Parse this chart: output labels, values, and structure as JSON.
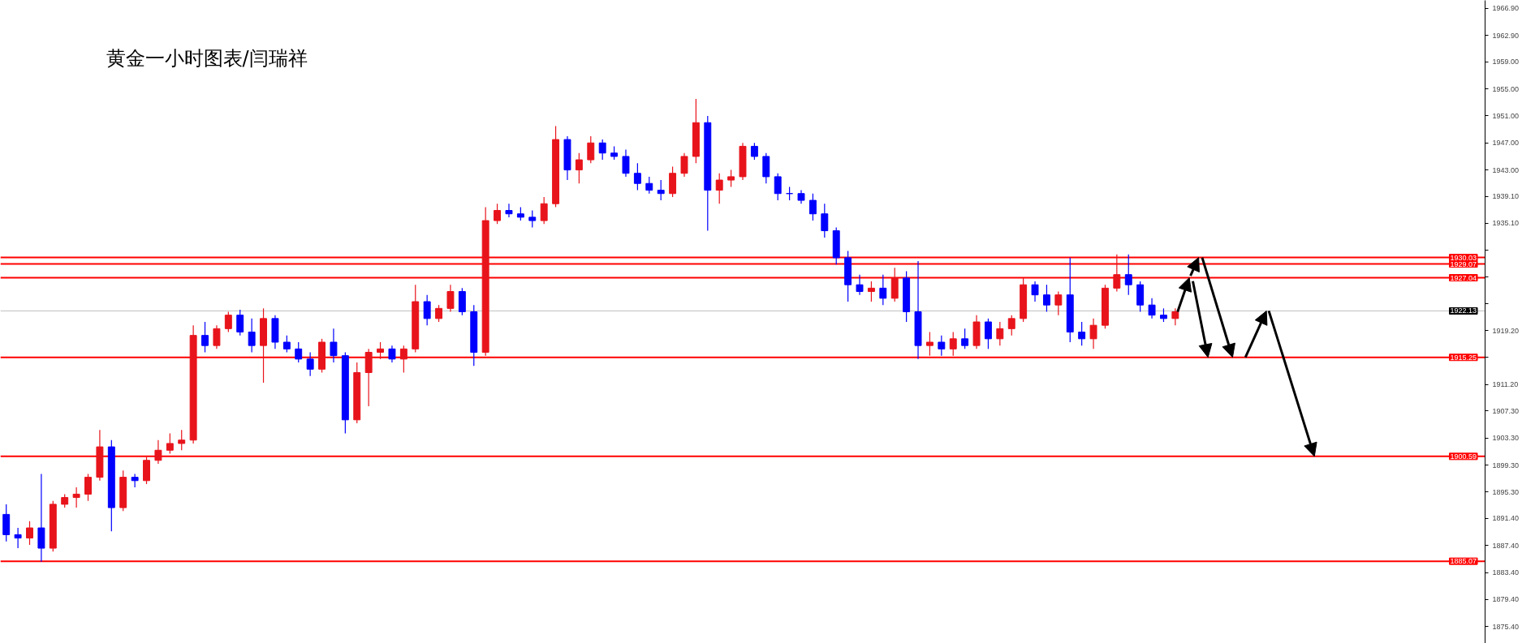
{
  "chart_data": {
    "type": "candlestick",
    "title": "黄金一小时图表/闫瑞祥",
    "categories": [
      null,
      null,
      null,
      null,
      null,
      null,
      null,
      null,
      null,
      null,
      null,
      null,
      null,
      null,
      null,
      null,
      null,
      null,
      null,
      null,
      null,
      null,
      null,
      null,
      null,
      null,
      null,
      null,
      null,
      null,
      null,
      null,
      null,
      null,
      null,
      null,
      null,
      null,
      null,
      null,
      null,
      null,
      null,
      null,
      null,
      null,
      null,
      null,
      null,
      null,
      null,
      null,
      null,
      null,
      null,
      null,
      null,
      null,
      null,
      null,
      null,
      null,
      null,
      null,
      null,
      null,
      null,
      null,
      null,
      null,
      null,
      null,
      null,
      null,
      null,
      null,
      null,
      null,
      null,
      null,
      null,
      null,
      null,
      null,
      null,
      null,
      null,
      null,
      null,
      null,
      null,
      null,
      null,
      null,
      null,
      null,
      null,
      null,
      null,
      null,
      null,
      null,
      null,
      null,
      null,
      null,
      null,
      null,
      null,
      null,
      null,
      null,
      null,
      null,
      null,
      null,
      null,
      null,
      null,
      null,
      null,
      null,
      null,
      null,
      null,
      null,
      null
    ],
    "ohlc": [
      [
        1892,
        1893.5,
        1888,
        1889
      ],
      [
        1889,
        1890,
        1887,
        1888.5
      ],
      [
        1888.5,
        1891,
        1887.5,
        1890
      ],
      [
        1890,
        1898,
        1885,
        1887
      ],
      [
        1887,
        1894,
        1886.5,
        1893.5
      ],
      [
        1893.5,
        1895,
        1893,
        1894.5
      ],
      [
        1894.5,
        1896,
        1893,
        1895
      ],
      [
        1895,
        1898,
        1894,
        1897.5
      ],
      [
        1897.5,
        1904.5,
        1897,
        1902
      ],
      [
        1902,
        1903,
        1889.5,
        1893
      ],
      [
        1893,
        1898.5,
        1892.5,
        1897.5
      ],
      [
        1897.5,
        1898,
        1896,
        1897
      ],
      [
        1897,
        1900.5,
        1896.5,
        1900
      ],
      [
        1900,
        1903,
        1899.5,
        1901.5
      ],
      [
        1901.5,
        1904,
        1901,
        1902.5
      ],
      [
        1902.5,
        1904.5,
        1901.5,
        1903
      ],
      [
        1903,
        1920,
        1902.5,
        1918.5
      ],
      [
        1918.5,
        1920.5,
        1916,
        1917
      ],
      [
        1917,
        1920,
        1916.5,
        1919.5
      ],
      [
        1919.5,
        1922,
        1919,
        1921.5
      ],
      [
        1921.5,
        1922.3,
        1918.5,
        1919
      ],
      [
        1919,
        1921,
        1916,
        1917
      ],
      [
        1917,
        1922.5,
        1911.5,
        1921
      ],
      [
        1921,
        1921.5,
        1916.5,
        1917.5
      ],
      [
        1917.5,
        1918.5,
        1916,
        1916.5
      ],
      [
        1916.5,
        1917.5,
        1914.5,
        1915
      ],
      [
        1915,
        1916,
        1912.5,
        1913.5
      ],
      [
        1913.5,
        1918,
        1913,
        1917.5
      ],
      [
        1917.5,
        1919.5,
        1914.5,
        1915.5
      ],
      [
        1915.5,
        1916,
        1904,
        1906
      ],
      [
        1906,
        1914.5,
        1905.5,
        1913
      ],
      [
        1913,
        1916.5,
        1908,
        1916
      ],
      [
        1916,
        1917.5,
        1915,
        1916.5
      ],
      [
        1916.5,
        1917,
        1914.5,
        1915
      ],
      [
        1915,
        1917,
        1913,
        1916.5
      ],
      [
        1916.5,
        1926,
        1916,
        1923.5
      ],
      [
        1923.5,
        1924.5,
        1920,
        1921
      ],
      [
        1921,
        1923,
        1920.5,
        1922.5
      ],
      [
        1922.5,
        1926,
        1922,
        1925
      ],
      [
        1925,
        1925.5,
        1921.5,
        1922
      ],
      [
        1922,
        1923,
        1914,
        1916
      ],
      [
        1916,
        1937.5,
        1915.5,
        1935.5
      ],
      [
        1935.5,
        1938,
        1935,
        1937
      ],
      [
        1937,
        1938,
        1936,
        1936.5
      ],
      [
        1936.5,
        1937.5,
        1935.5,
        1936
      ],
      [
        1936,
        1937,
        1934.5,
        1935.5
      ],
      [
        1935.5,
        1939,
        1935,
        1938
      ],
      [
        1938,
        1949.5,
        1937.5,
        1947.5
      ],
      [
        1947.5,
        1948,
        1941.5,
        1943
      ],
      [
        1943,
        1945.5,
        1941,
        1944.5
      ],
      [
        1944.5,
        1948,
        1944,
        1947
      ],
      [
        1947,
        1947.5,
        1944.5,
        1945.5
      ],
      [
        1945.5,
        1946.5,
        1944.5,
        1945
      ],
      [
        1945,
        1946,
        1942,
        1942.5
      ],
      [
        1942.5,
        1944,
        1940,
        1941
      ],
      [
        1941,
        1942,
        1939.5,
        1940
      ],
      [
        1940,
        1941.5,
        1938.5,
        1939.5
      ],
      [
        1939.5,
        1943.5,
        1939,
        1942.5
      ],
      [
        1942.5,
        1945.5,
        1942,
        1945
      ],
      [
        1945,
        1953.5,
        1944,
        1950
      ],
      [
        1950,
        1951,
        1934,
        1940
      ],
      [
        1940,
        1942.5,
        1938,
        1941.5
      ],
      [
        1941.5,
        1943,
        1940.5,
        1942
      ],
      [
        1942,
        1947,
        1941.5,
        1946.5
      ],
      [
        1946.5,
        1947,
        1944.5,
        1945
      ],
      [
        1945,
        1945.5,
        1941,
        1942
      ],
      [
        1942,
        1942.5,
        1938.5,
        1939.5
      ],
      [
        1939.5,
        1940.5,
        1938.5,
        1939.5
      ],
      [
        1939.5,
        1940,
        1938,
        1938.5
      ],
      [
        1938.5,
        1939.5,
        1935.5,
        1936.5
      ],
      [
        1936.5,
        1938,
        1933,
        1934
      ],
      [
        1934,
        1934.5,
        1929,
        1930
      ],
      [
        1930,
        1931,
        1923.5,
        1926
      ],
      [
        1926,
        1927.5,
        1924.5,
        1925
      ],
      [
        1925,
        1926.5,
        1923.5,
        1925.5
      ],
      [
        1925.5,
        1927.5,
        1923,
        1924
      ],
      [
        1924,
        1928.5,
        1923.5,
        1927
      ],
      [
        1927,
        1928,
        1920.5,
        1922
      ],
      [
        1922,
        1929.5,
        1915,
        1917
      ],
      [
        1917,
        1919,
        1915.5,
        1917.5
      ],
      [
        1917.5,
        1918.5,
        1915.5,
        1916.5
      ],
      [
        1916.5,
        1919,
        1915.5,
        1918
      ],
      [
        1918,
        1919.5,
        1916.5,
        1917
      ],
      [
        1917,
        1921.5,
        1916.5,
        1920.5
      ],
      [
        1920.5,
        1921,
        1916.5,
        1918
      ],
      [
        1918,
        1920.5,
        1917,
        1919.5
      ],
      [
        1919.5,
        1921.5,
        1918.5,
        1921
      ],
      [
        1921,
        1927,
        1920.5,
        1926
      ],
      [
        1926,
        1926.5,
        1923.5,
        1924.5
      ],
      [
        1924.5,
        1926,
        1922,
        1923
      ],
      [
        1923,
        1925,
        1921.5,
        1924.5
      ],
      [
        1924.5,
        1930,
        1917.5,
        1919
      ],
      [
        1919,
        1920.5,
        1917,
        1918
      ],
      [
        1918,
        1921,
        1916.5,
        1920
      ],
      [
        1920,
        1926,
        1919.5,
        1925.5
      ],
      [
        1925.5,
        1930.5,
        1925,
        1927.5
      ],
      [
        1927.5,
        1930.5,
        1924.5,
        1926
      ],
      [
        1926,
        1926.5,
        1922,
        1923
      ],
      [
        1923,
        1924,
        1921,
        1921.5
      ],
      [
        1921.5,
        1922.5,
        1920.5,
        1921
      ],
      [
        1921,
        1922.5,
        1920,
        1922
      ],
      null,
      null,
      null,
      null,
      null,
      null,
      null,
      null,
      null,
      null,
      null,
      null,
      null,
      null,
      null,
      null,
      null,
      null,
      null,
      null,
      null,
      null,
      null,
      null,
      null,
      null
    ],
    "colors": [
      "#0000ff",
      "#0000ff",
      "#e8141b",
      "#0000ff",
      "#e8141b",
      "#e8141b",
      "#e8141b",
      "#e8141b",
      "#e8141b",
      "#0000ff",
      "#e8141b",
      "#0000ff",
      "#e8141b",
      "#e8141b",
      "#e8141b",
      "#e8141b",
      "#e8141b",
      "#0000ff",
      "#e8141b",
      "#e8141b",
      "#0000ff",
      "#0000ff",
      "#e8141b",
      "#0000ff",
      "#0000ff",
      "#0000ff",
      "#0000ff",
      "#e8141b",
      "#0000ff",
      "#0000ff",
      "#e8141b",
      "#e8141b",
      "#e8141b",
      "#0000ff",
      "#e8141b",
      "#e8141b",
      "#0000ff",
      "#e8141b",
      "#e8141b",
      "#0000ff",
      "#0000ff",
      "#e8141b",
      "#e8141b",
      "#0000ff",
      "#0000ff",
      "#0000ff",
      "#e8141b",
      "#e8141b",
      "#0000ff",
      "#e8141b",
      "#e8141b",
      "#0000ff",
      "#0000ff",
      "#0000ff",
      "#0000ff",
      "#0000ff",
      "#0000ff",
      "#e8141b",
      "#e8141b",
      "#e8141b",
      "#0000ff",
      "#e8141b",
      "#e8141b",
      "#e8141b",
      "#0000ff",
      "#0000ff",
      "#0000ff",
      "#0000ff",
      "#0000ff",
      "#0000ff",
      "#0000ff",
      "#0000ff",
      "#0000ff",
      "#0000ff",
      "#e8141b",
      "#0000ff",
      "#e8141b",
      "#0000ff",
      "#0000ff",
      "#e8141b",
      "#0000ff",
      "#e8141b",
      "#0000ff",
      "#e8141b",
      "#0000ff",
      "#e8141b",
      "#e8141b",
      "#e8141b",
      "#0000ff",
      "#0000ff",
      "#e8141b",
      "#0000ff",
      "#0000ff",
      "#e8141b",
      "#e8141b",
      "#e8141b",
      "#0000ff",
      "#0000ff",
      "#0000ff",
      "#0000ff",
      "#e8141b",
      null,
      null,
      null,
      null,
      null,
      null,
      null,
      null,
      null,
      null,
      null,
      null,
      null,
      null,
      null,
      null,
      null,
      null,
      null,
      null,
      null,
      null,
      null,
      null,
      null,
      null
    ],
    "ylim": [
      1872.9,
      1968.1
    ],
    "yticks": [
      {
        "value": 1966.9,
        "label": "1966.90"
      },
      {
        "value": 1962.9,
        "label": "1962.90"
      },
      {
        "value": 1959.0,
        "label": "1959.00"
      },
      {
        "value": 1955.0,
        "label": "1955.00"
      },
      {
        "value": 1951.0,
        "label": "1951.00"
      },
      {
        "value": 1947.0,
        "label": "1947.00"
      },
      {
        "value": 1943.0,
        "label": "1943.00"
      },
      {
        "value": 1939.1,
        "label": "1939.10"
      },
      {
        "value": 1935.1,
        "label": "1935.10"
      },
      {
        "value": 1931.1,
        "label": null
      },
      {
        "value": 1927.2,
        "label": null
      },
      {
        "value": 1923.2,
        "label": null
      },
      {
        "value": 1919.2,
        "label": "1919.20"
      },
      {
        "value": 1915.3,
        "label": null
      },
      {
        "value": 1911.2,
        "label": "1911.20"
      },
      {
        "value": 1907.3,
        "label": "1907.30"
      },
      {
        "value": 1903.3,
        "label": "1903.30"
      },
      {
        "value": 1899.3,
        "label": "1899.30"
      },
      {
        "value": 1895.3,
        "label": "1895.30"
      },
      {
        "value": 1891.4,
        "label": "1891.40"
      },
      {
        "value": 1887.4,
        "label": "1887.40"
      },
      {
        "value": 1883.4,
        "label": "1883.40"
      },
      {
        "value": 1879.4,
        "label": "1879.40"
      },
      {
        "value": 1875.4,
        "label": "1875.40"
      }
    ],
    "tick_labels": "y",
    "ref_lines": [
      {
        "axis": "y",
        "value": 1930.03,
        "label": "1930.03",
        "color": "#ff0000"
      },
      {
        "axis": "y",
        "value": 1929.07,
        "label": "1929.07",
        "color": "#ff0000"
      },
      {
        "axis": "y",
        "value": 1927.04,
        "label": "1927.04",
        "color": "#ff0000"
      },
      {
        "axis": "y",
        "value": 1922.13,
        "label": "1922.13",
        "color": "#c0c0c0"
      },
      {
        "axis": "y",
        "value": 1915.25,
        "label": "1915.25",
        "color": "#ff0000"
      },
      {
        "axis": "y",
        "value": 1900.59,
        "label": "1900.59",
        "color": "#ff0000"
      },
      {
        "axis": "y",
        "value": 1885.07,
        "label": "1885.07",
        "color": "#ff0000"
      }
    ]
  }
}
